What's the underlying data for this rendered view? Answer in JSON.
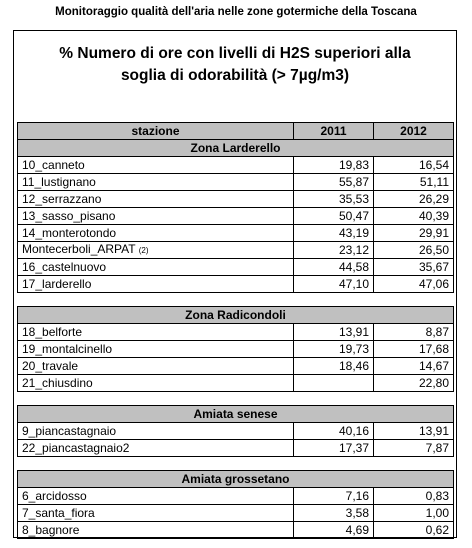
{
  "heading": "Monitoraggio qualità dell'aria nelle zone gotermiche della Toscana",
  "title": {
    "line1": "% Numero di ore con livelli di H2S  superiori alla",
    "line2": "soglia di odorabilità (> 7µg/m3)"
  },
  "columns": {
    "station": "stazione",
    "y2011": "2011",
    "y2012": "2012"
  },
  "zones": [
    {
      "name": "Zona Larderello",
      "rows": [
        {
          "station": "10_canneto",
          "y2011": "19,83",
          "y2012": "16,54"
        },
        {
          "station": "11_lustignano",
          "y2011": "55,87",
          "y2012": "51,11"
        },
        {
          "station": "12_serrazzano",
          "y2011": "35,53",
          "y2012": "26,29"
        },
        {
          "station": "13_sasso_pisano",
          "y2011": "50,47",
          "y2012": "40,39"
        },
        {
          "station": "14_monterotondo",
          "y2011": "43,19",
          "y2012": "29,91"
        },
        {
          "station": "Montecerboli_ARPAT",
          "note": "(2)",
          "y2011": "23,12",
          "y2012": "26,50"
        },
        {
          "station": "16_castelnuovo",
          "y2011": "44,58",
          "y2012": "35,67"
        },
        {
          "station": "17_larderello",
          "y2011": "47,10",
          "y2012": "47,06"
        }
      ]
    },
    {
      "name": "Zona Radicondoli",
      "rows": [
        {
          "station": "18_belforte",
          "y2011": "13,91",
          "y2012": "8,87"
        },
        {
          "station": "19_montalcinello",
          "y2011": "19,73",
          "y2012": "17,68"
        },
        {
          "station": "20_travale",
          "y2011": "18,46",
          "y2012": "14,67"
        },
        {
          "station": "21_chiusdino",
          "y2011": "",
          "y2012": "22,80"
        }
      ]
    },
    {
      "name": "Amiata senese",
      "rows": [
        {
          "station": "9_piancastagnaio",
          "y2011": "40,16",
          "y2012": "13,91"
        },
        {
          "station": "22_piancastagnaio2",
          "y2011": "17,37",
          "y2012": "7,87"
        }
      ]
    },
    {
      "name": "Amiata grossetano",
      "rows": [
        {
          "station": "6_arcidosso",
          "y2011": "7,16",
          "y2012": "0,83"
        },
        {
          "station": "7_santa_fiora",
          "y2011": "3,58",
          "y2012": "1,00"
        },
        {
          "station": "8_bagnore",
          "y2011": "4,69",
          "y2012": "0,62"
        }
      ]
    }
  ]
}
